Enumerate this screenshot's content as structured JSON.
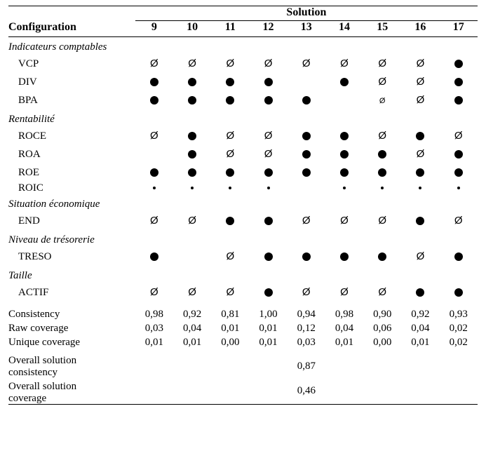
{
  "colors": {
    "text": "#000000",
    "background": "#ffffff",
    "rule": "#000000"
  },
  "fonts": {
    "family": "Times New Roman",
    "base_size_pt": 15,
    "header_size_pt": 16
  },
  "header": {
    "configuration_label": "Configuration",
    "spanner_label": "Solution",
    "solutions": [
      "9",
      "10",
      "11",
      "12",
      "13",
      "14",
      "15",
      "16",
      "17"
    ]
  },
  "symbol_legend": {
    "E": "empty-set Ø (large)",
    "e": "empty-set Ø (small)",
    "D": "filled dot (large)",
    "d": "filled dot (small)",
    "": "blank"
  },
  "sections": [
    {
      "title": "Indicateurs comptables",
      "rows": [
        {
          "label": "VCP",
          "cells": [
            "E",
            "E",
            "E",
            "E",
            "E",
            "E",
            "E",
            "E",
            "D"
          ]
        },
        {
          "label": "DIV",
          "cells": [
            "D",
            "D",
            "D",
            "D",
            "",
            "D",
            "E",
            "E",
            "D"
          ]
        },
        {
          "label": "BPA",
          "cells": [
            "D",
            "D",
            "D",
            "D",
            "D",
            "",
            "e",
            "E",
            "D"
          ]
        }
      ]
    },
    {
      "title": "Rentabilité",
      "rows": [
        {
          "label": "ROCE",
          "cells": [
            "E",
            "D",
            "E",
            "E",
            "D",
            "D",
            "E",
            "D",
            "E"
          ]
        },
        {
          "label": "ROA",
          "cells": [
            "",
            "D",
            "E",
            "E",
            "D",
            "D",
            "D",
            "E",
            "D"
          ]
        },
        {
          "label": "ROE",
          "cells": [
            "D",
            "D",
            "D",
            "D",
            "D",
            "D",
            "D",
            "D",
            "D"
          ]
        },
        {
          "label": "ROIC",
          "cells": [
            "d",
            "d",
            "d",
            "d",
            "",
            "d",
            "d",
            "d",
            "d"
          ],
          "small": true
        }
      ]
    },
    {
      "title": "Situation économique",
      "rows": [
        {
          "label": "END",
          "cells": [
            "E",
            "E",
            "D",
            "D",
            "E",
            "E",
            "E",
            "D",
            "E"
          ]
        }
      ]
    },
    {
      "title": "Niveau de trésorerie",
      "rows": [
        {
          "label": "TRESO",
          "cells": [
            "D",
            "",
            "E",
            "D",
            "D",
            "D",
            "D",
            "E",
            "D"
          ]
        }
      ]
    },
    {
      "title": "Taille",
      "rows": [
        {
          "label": "ACTIF",
          "cells": [
            "E",
            "E",
            "E",
            "D",
            "E",
            "E",
            "E",
            "D",
            "D"
          ]
        }
      ]
    }
  ],
  "stats": [
    {
      "label": "Consistency",
      "values": [
        "0,98",
        "0,92",
        "0,81",
        "1,00",
        "0,94",
        "0,98",
        "0,90",
        "0,92",
        "0,93"
      ]
    },
    {
      "label": "Raw coverage",
      "values": [
        "0,03",
        "0,04",
        "0,01",
        "0,01",
        "0,12",
        "0,04",
        "0,06",
        "0,04",
        "0,02"
      ]
    },
    {
      "label": "Unique coverage",
      "values": [
        "0,01",
        "0,01",
        "0,00",
        "0,01",
        "0,03",
        "0,01",
        "0,00",
        "0,01",
        "0,02"
      ]
    }
  ],
  "overall": [
    {
      "label_line1": "Overall solution",
      "label_line2": "consistency",
      "value": "0,87"
    },
    {
      "label_line1": "Overall solution",
      "label_line2": "coverage",
      "value": "0,46"
    }
  ]
}
